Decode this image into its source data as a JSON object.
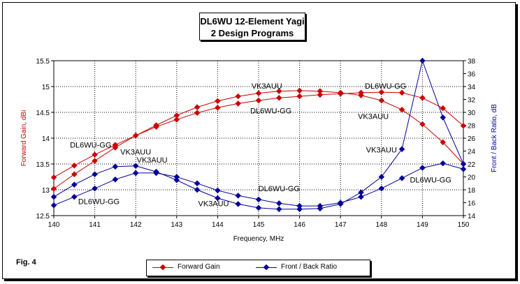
{
  "title": {
    "line1": "DL6WU 12-Element Yagi",
    "line2": "2 Design Programs"
  },
  "fig_label": "Fig. 4",
  "colors": {
    "gain": "#cc0000",
    "ratio": "#000099",
    "grid": "#000000"
  },
  "legend": {
    "gain": "Forward Gain",
    "ratio": "Front / Back Ratio"
  },
  "chart_data": {
    "type": "line",
    "title": "DL6WU 12-Element Yagi 2 Design Programs",
    "xlabel": "Frequency, MHz",
    "ylabel_left": "Forward Gain, dBi",
    "ylabel_right": "Front / Back Ratio, dB",
    "xlim": [
      140,
      150
    ],
    "ylim_left": [
      12.5,
      15.5
    ],
    "ylim_right": [
      14,
      38
    ],
    "x_ticks": [
      140,
      141,
      142,
      143,
      144,
      145,
      146,
      147,
      148,
      149,
      150
    ],
    "y_left_ticks": [
      12.5,
      13,
      13.5,
      14,
      14.5,
      15,
      15.5
    ],
    "y_right_ticks": [
      14,
      16,
      18,
      20,
      22,
      24,
      26,
      28,
      30,
      32,
      34,
      36,
      38
    ],
    "x": [
      140,
      140.5,
      141,
      141.5,
      142,
      142.5,
      143,
      143.5,
      144,
      144.5,
      145,
      145.5,
      146,
      146.5,
      147,
      147.5,
      148,
      148.5,
      149,
      149.5,
      150
    ],
    "series": [
      {
        "name": "Forward Gain (VK3AUU)",
        "axis": "left",
        "values": [
          13.02,
          13.3,
          13.56,
          13.82,
          14.05,
          14.25,
          14.44,
          14.6,
          14.72,
          14.81,
          14.87,
          14.91,
          14.92,
          14.91,
          14.88,
          14.83,
          14.73,
          14.55,
          14.27,
          13.92,
          13.5
        ]
      },
      {
        "name": "Forward Gain (DL6WU-GG)",
        "axis": "left",
        "values": [
          13.24,
          13.47,
          13.68,
          13.87,
          14.05,
          14.22,
          14.36,
          14.49,
          14.59,
          14.67,
          14.73,
          14.78,
          14.81,
          14.84,
          14.86,
          14.88,
          14.89,
          14.88,
          14.78,
          14.58,
          14.24
        ]
      },
      {
        "name": "Front / Back Ratio (VK3AUU)",
        "axis": "right",
        "values": [
          16.9,
          18.8,
          20.4,
          21.6,
          21.7,
          20.8,
          19.5,
          18.0,
          16.7,
          15.8,
          15.2,
          15.0,
          15.0,
          15.1,
          15.8,
          17.6,
          20.0,
          24.3,
          38.0,
          29.2,
          22.0
        ]
      },
      {
        "name": "Front / Back Ratio (DL6WU-GG)",
        "axis": "right",
        "values": [
          15.6,
          16.9,
          18.2,
          19.6,
          20.6,
          20.6,
          20.0,
          19.0,
          17.9,
          17.1,
          16.5,
          15.9,
          15.5,
          15.5,
          16.0,
          16.9,
          18.2,
          19.8,
          21.4,
          22.1,
          21.2
        ]
      }
    ],
    "annotations": [
      {
        "text": "VK3AUU",
        "x": 145.2,
        "y": 14.96,
        "axis": "left"
      },
      {
        "text": "DL6WU-GG",
        "x": 148.1,
        "y": 14.96,
        "axis": "left"
      },
      {
        "text": "DL6WU-GG",
        "x": 145.3,
        "y": 14.48,
        "axis": "left"
      },
      {
        "text": "VK3AUU",
        "x": 147.8,
        "y": 14.37,
        "axis": "left"
      },
      {
        "text": "DL6WU-GG",
        "x": 140.9,
        "y": 13.82,
        "axis": "left"
      },
      {
        "text": "VK3AUU",
        "x": 142.0,
        "y": 13.68,
        "axis": "left"
      },
      {
        "text": "VK3AUU",
        "x": 142.4,
        "y": 13.53,
        "axis": "left"
      },
      {
        "text": "VK3AUU",
        "x": 148.0,
        "y": 13.72,
        "axis": "left"
      },
      {
        "text": "DL6WU-GG",
        "x": 141.1,
        "y": 12.72,
        "axis": "left"
      },
      {
        "text": "DL6WU-GG",
        "x": 145.5,
        "y": 12.97,
        "axis": "left"
      },
      {
        "text": "VK3AUU",
        "x": 143.9,
        "y": 12.68,
        "axis": "left"
      },
      {
        "text": "DL6WU-GG",
        "x": 149.2,
        "y": 13.14,
        "axis": "left"
      }
    ]
  }
}
